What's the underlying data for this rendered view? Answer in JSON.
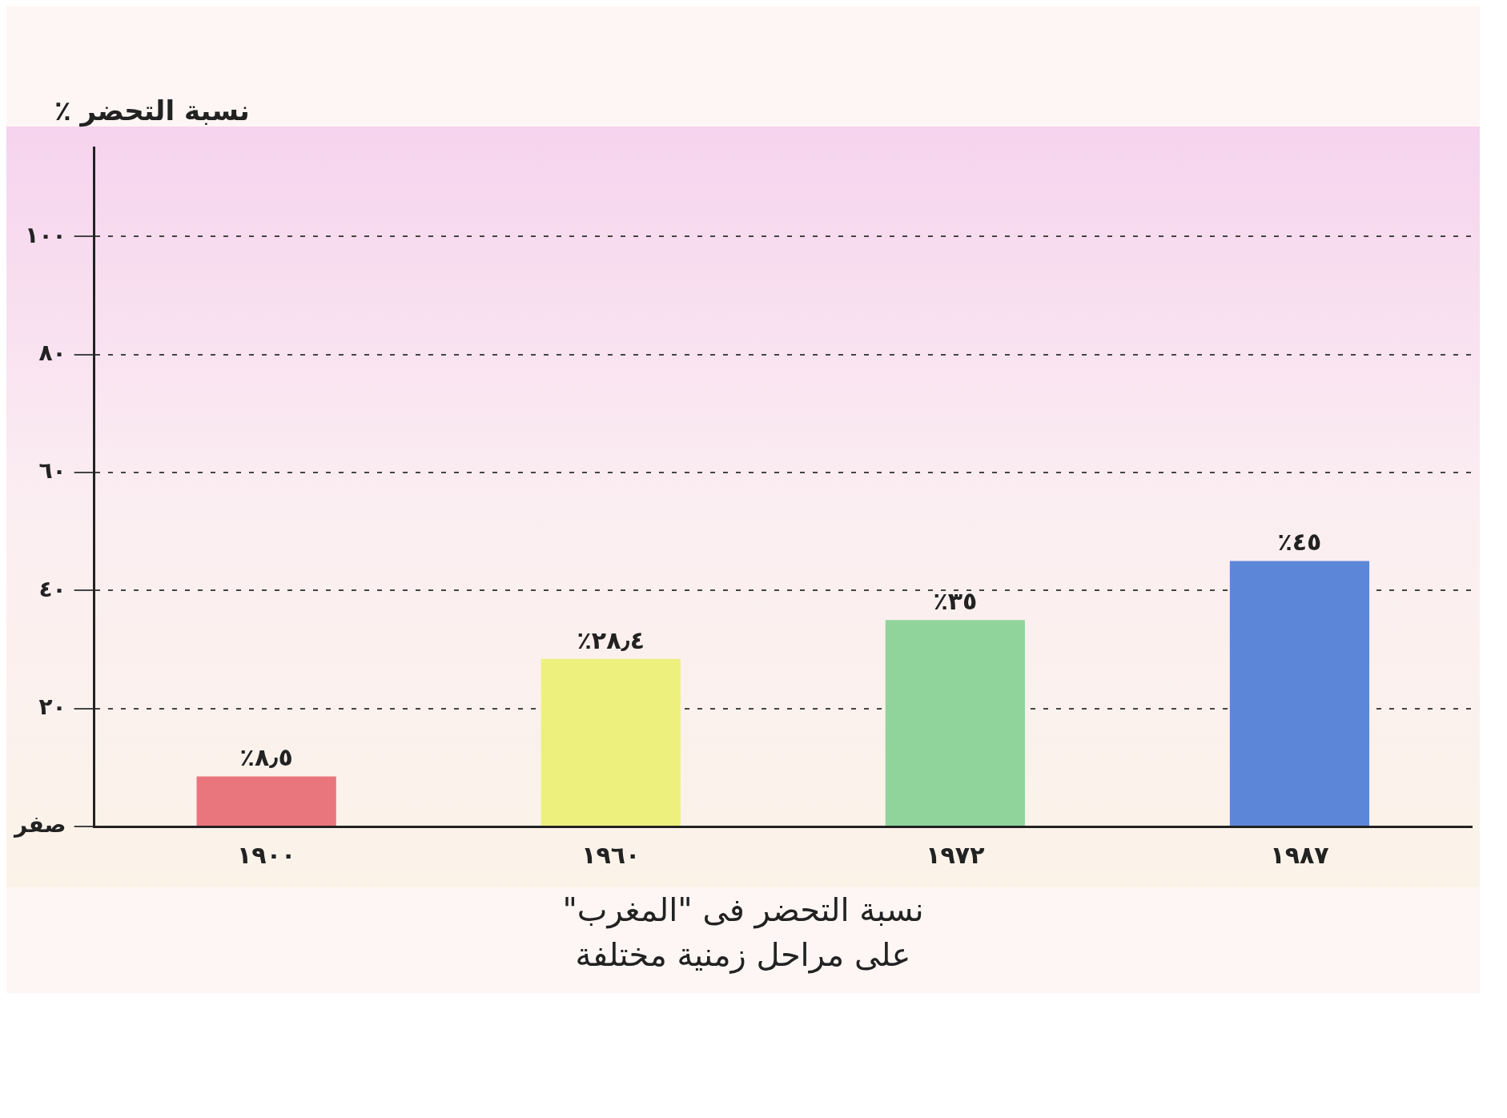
{
  "chart_data": {
    "type": "bar",
    "title": "نسبة التحضر فى \"المغرب\"\nعلى مراحل زمنية مختلفة",
    "ylabel": "نسبة التحضر ٪",
    "categories": [
      "١٩٠٠",
      "١٩٦٠",
      "١٩٧٢",
      "١٩٨٧"
    ],
    "values": [
      8.5,
      28.4,
      35,
      45
    ],
    "colors": [
      "#e8767c",
      "#eef07e",
      "#90d49c",
      "#5c86d8"
    ],
    "value_labels": [
      "٪٨٫٥",
      "٪٢٨٫٤",
      "٪٣٥",
      "٪٤٥"
    ],
    "ylim": [
      0,
      115
    ],
    "yticks": [
      {
        "value": 0,
        "label": "صفر"
      },
      {
        "value": 20,
        "label": "٢٠"
      },
      {
        "value": 40,
        "label": "٤٠"
      },
      {
        "value": 60,
        "label": "٦٠"
      },
      {
        "value": 80,
        "label": "٨٠"
      },
      {
        "value": 100,
        "label": "١٠٠"
      }
    ],
    "grid": "y",
    "legend": false
  }
}
